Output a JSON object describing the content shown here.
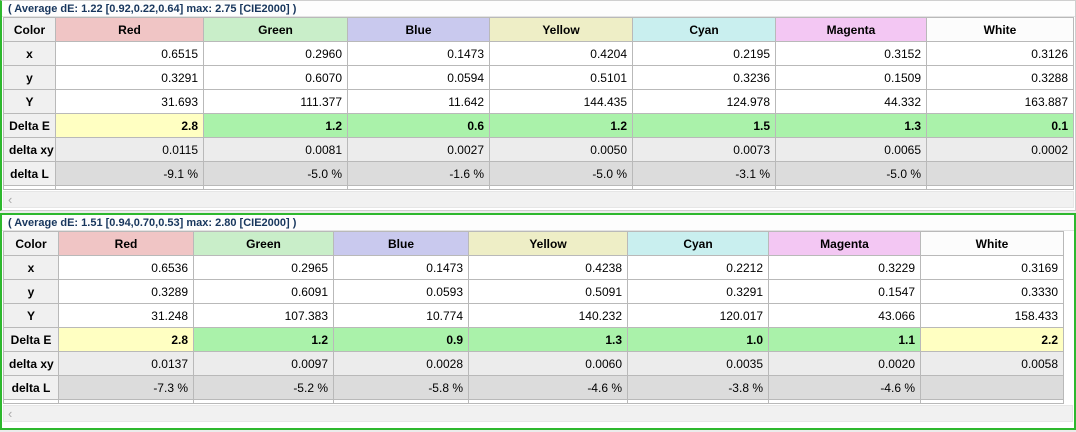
{
  "colors": {
    "panel_border_green": "#2eb82e",
    "caption_text": "#17365d",
    "delta_e_green": "#aaf2aa",
    "delta_e_yellow": "#ffffc2",
    "row_label_bg": "#f0f0f0",
    "delta_xy_bg": "#ececec",
    "delta_l_bg": "#dcdcdc",
    "header_tints": {
      "Color": "#f0f0f0",
      "Red": "#f0c5c5",
      "Green": "#c9eec9",
      "Blue": "#c9c9ee",
      "Yellow": "#eeeec6",
      "Cyan": "#c9efef",
      "Magenta": "#f3c7f3",
      "White": "#fcfcfc"
    }
  },
  "icons": {
    "scroll_left": "‹"
  },
  "panels": [
    {
      "title": "( Average dE: 1.22 [0.92,0.22,0.64] max: 2.75 [CIE2000] )",
      "columns": [
        "Color",
        "Red",
        "Green",
        "Blue",
        "Yellow",
        "Cyan",
        "Magenta",
        "White"
      ],
      "rows": [
        {
          "label": "x",
          "band": "white",
          "values": [
            "0.6515",
            "0.2960",
            "0.1473",
            "0.4204",
            "0.2195",
            "0.3152",
            "0.3126"
          ]
        },
        {
          "label": "y",
          "band": "white",
          "values": [
            "0.3291",
            "0.6070",
            "0.0594",
            "0.5101",
            "0.3236",
            "0.1509",
            "0.3288"
          ]
        },
        {
          "label": "Y",
          "band": "white",
          "values": [
            "31.693",
            "111.377",
            "11.642",
            "144.435",
            "124.978",
            "44.332",
            "163.887"
          ]
        },
        {
          "label": "Delta E",
          "band": "deltae",
          "values": [
            "2.8",
            "1.2",
            "0.6",
            "1.2",
            "1.5",
            "1.3",
            "0.1"
          ],
          "highlight": [
            "yellow",
            "green",
            "green",
            "green",
            "green",
            "green",
            "green"
          ]
        },
        {
          "label": "delta xy",
          "band": "xy",
          "values": [
            "0.0115",
            "0.0081",
            "0.0027",
            "0.0050",
            "0.0073",
            "0.0065",
            "0.0002"
          ]
        },
        {
          "label": "delta L",
          "band": "dl",
          "values": [
            "-9.1 %",
            "-5.0 %",
            "-1.6 %",
            "-5.0 %",
            "-3.1 %",
            "-5.0 %",
            ""
          ]
        }
      ]
    },
    {
      "title": "( Average dE: 1.51 [0.94,0.70,0.53] max: 2.80 [CIE2000] )",
      "columns": [
        "Color",
        "Red",
        "Green",
        "Blue",
        "Yellow",
        "Cyan",
        "Magenta",
        "White"
      ],
      "rows": [
        {
          "label": "x",
          "band": "white",
          "values": [
            "0.6536",
            "0.2965",
            "0.1473",
            "0.4238",
            "0.2212",
            "0.3229",
            "0.3169"
          ]
        },
        {
          "label": "y",
          "band": "white",
          "values": [
            "0.3289",
            "0.6091",
            "0.0593",
            "0.5091",
            "0.3291",
            "0.1547",
            "0.3330"
          ]
        },
        {
          "label": "Y",
          "band": "white",
          "values": [
            "31.248",
            "107.383",
            "10.774",
            "140.232",
            "120.017",
            "43.066",
            "158.433"
          ]
        },
        {
          "label": "Delta E",
          "band": "deltae",
          "values": [
            "2.8",
            "1.2",
            "0.9",
            "1.3",
            "1.0",
            "1.1",
            "2.2"
          ],
          "highlight": [
            "yellow",
            "green",
            "green",
            "green",
            "green",
            "green",
            "yellow"
          ]
        },
        {
          "label": "delta xy",
          "band": "xy",
          "values": [
            "0.0137",
            "0.0097",
            "0.0028",
            "0.0060",
            "0.0035",
            "0.0020",
            "0.0058"
          ]
        },
        {
          "label": "delta L",
          "band": "dl",
          "values": [
            "-7.3 %",
            "-5.2 %",
            "-5.8 %",
            "-4.6 %",
            "-3.8 %",
            "-4.6 %",
            ""
          ]
        }
      ]
    }
  ]
}
